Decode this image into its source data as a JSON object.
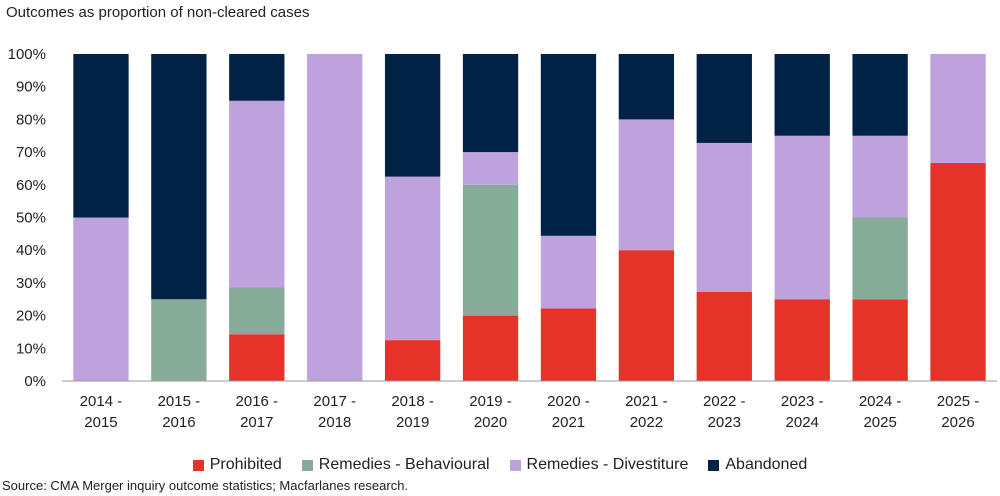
{
  "chart_data": {
    "type": "bar",
    "stacked": true,
    "title": "Outcomes as proportion of non-cleared cases",
    "source": "Source: CMA Merger inquiry outcome statistics; Macfarlanes research.",
    "categories": [
      [
        "2014 -",
        "2015"
      ],
      [
        "2015 -",
        "2016"
      ],
      [
        "2016 -",
        "2017"
      ],
      [
        "2017 -",
        "2018"
      ],
      [
        "2018 -",
        "2019"
      ],
      [
        "2019 -",
        "2020"
      ],
      [
        "2020 -",
        "2021"
      ],
      [
        "2021 -",
        "2022"
      ],
      [
        "2022 -",
        "2023"
      ],
      [
        "2023 -",
        "2024"
      ],
      [
        "2024 -",
        "2025"
      ],
      [
        "2025 -",
        "2026"
      ]
    ],
    "y_ticks": [
      "0%",
      "10%",
      "20%",
      "30%",
      "40%",
      "50%",
      "60%",
      "70%",
      "80%",
      "90%",
      "100%"
    ],
    "ylim": [
      0,
      100
    ],
    "grid": false,
    "legend_position": "bottom",
    "series": [
      {
        "name": "Prohibited",
        "color": "#e5332a",
        "values": [
          0,
          0,
          14.3,
          0,
          12.5,
          20,
          22.2,
          40,
          27.3,
          25,
          25,
          66.7
        ]
      },
      {
        "name": "Remedies - Behavioural",
        "color": "#86ab98",
        "values": [
          0,
          25,
          14.3,
          0,
          0,
          40,
          0,
          0,
          0,
          0,
          25,
          0
        ]
      },
      {
        "name": "Remedies - Divestiture",
        "color": "#bea2dd",
        "values": [
          50,
          0,
          57.1,
          100,
          50,
          10,
          22.2,
          40,
          45.5,
          50,
          25,
          33.3
        ]
      },
      {
        "name": "Abandoned",
        "color": "#002244",
        "values": [
          50,
          75,
          14.3,
          0,
          37.5,
          30,
          55.6,
          20,
          27.2,
          25,
          25,
          0
        ]
      }
    ]
  }
}
